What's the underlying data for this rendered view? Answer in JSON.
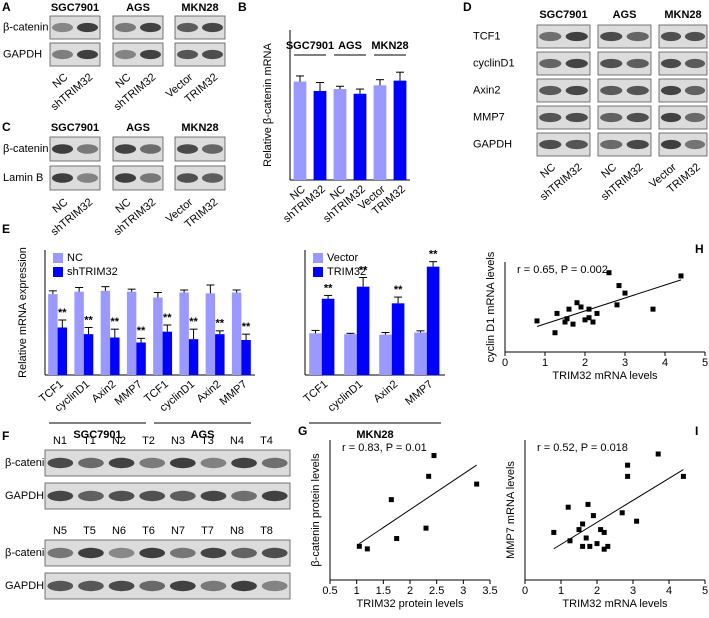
{
  "blots": {
    "A": {
      "label": "A",
      "groups": [
        "SGC7901",
        "AGS",
        "MKN28"
      ],
      "rows": [
        "β-catenin",
        "GAPDH"
      ],
      "lanes": [
        "NC",
        "shTRIM32",
        "NC",
        "shTRIM32",
        "Vector",
        "TRIM32"
      ]
    },
    "C": {
      "label": "C",
      "groups": [
        "SGC7901",
        "AGS",
        "MKN28"
      ],
      "rows": [
        "β-catenin",
        "Lamin B"
      ],
      "lanes": [
        "NC",
        "shTRIM32",
        "NC",
        "shTRIM32",
        "Vector",
        "TRIM32"
      ]
    },
    "D": {
      "label": "D",
      "groups": [
        "SGC7901",
        "AGS",
        "MKN28"
      ],
      "rows": [
        "TCF1",
        "cyclinD1",
        "Axin2",
        "MMP7",
        "GAPDH"
      ],
      "lanes": [
        "NC",
        "shTRIM32",
        "NC",
        "shTRIM32",
        "Vector",
        "TRIM32"
      ]
    },
    "F": {
      "label": "F",
      "rows": [
        "β-catenin",
        "GAPDH"
      ],
      "lanes_top": [
        "N1",
        "T1",
        "N2",
        "T2",
        "N3",
        "T3",
        "N4",
        "T4"
      ],
      "lanes_bottom": [
        "N5",
        "T5",
        "N6",
        "T6",
        "N7",
        "T7",
        "N8",
        "T8"
      ]
    }
  },
  "chart_data": [
    {
      "type": "bar",
      "label": "B",
      "ylabel": "Relative β-catenin mRNA",
      "groups": [
        "SGC7901",
        "AGS",
        "MKN28"
      ],
      "categories": [
        "NC",
        "shTRIM32",
        "NC",
        "shTRIM32",
        "Vector",
        "TRIM32"
      ],
      "values": [
        1.05,
        0.95,
        0.97,
        0.92,
        1.01,
        1.06
      ],
      "errors": [
        0.06,
        0.09,
        0.03,
        0.05,
        0.06,
        0.09
      ],
      "colors": [
        "#9999ff",
        "#0000ff",
        "#9999ff",
        "#0000ff",
        "#9999ff",
        "#0000ff"
      ],
      "ylim": [
        0,
        1.6
      ]
    },
    {
      "type": "bar",
      "label": "E",
      "ylabel": "Relative mRNA expression",
      "groups": [
        "SGC7901",
        "AGS"
      ],
      "categories": [
        "TCF1",
        "cyclinD1",
        "Axin2",
        "MMP7",
        "TCF1",
        "cyclinD1",
        "Axin2",
        "MMP7"
      ],
      "series": [
        {
          "name": "NC",
          "color": "#9999ff",
          "values": [
            0.97,
            1.0,
            1.01,
            1.0,
            0.93,
            0.99,
            0.98,
            0.99
          ],
          "errors": [
            0.04,
            0.05,
            0.05,
            0.03,
            0.06,
            0.03,
            0.1,
            0.03
          ]
        },
        {
          "name": "shTRIM32",
          "color": "#0000ff",
          "values": [
            0.57,
            0.49,
            0.45,
            0.39,
            0.52,
            0.43,
            0.49,
            0.42
          ],
          "errors": [
            0.09,
            0.08,
            0.1,
            0.05,
            0.08,
            0.12,
            0.04,
            0.07
          ],
          "annotations": [
            "**",
            "**",
            "**",
            "**",
            "**",
            "**",
            "**",
            "**"
          ]
        }
      ],
      "ylim": [
        0,
        1.5
      ]
    },
    {
      "type": "bar",
      "groups": [
        "MKN28"
      ],
      "categories": [
        "TCF1",
        "cyclinD1",
        "Axin2",
        "MMP7"
      ],
      "series": [
        {
          "name": "Vector",
          "color": "#9999ff",
          "values": [
            1.0,
            0.98,
            0.97,
            1.02
          ],
          "errors": [
            0.07,
            0.02,
            0.05,
            0.04
          ]
        },
        {
          "name": "TRIM32",
          "color": "#0000ff",
          "values": [
            1.83,
            2.12,
            1.72,
            2.6
          ],
          "errors": [
            0.08,
            0.22,
            0.15,
            0.12
          ],
          "annotations": [
            "**",
            "**",
            "**",
            "**"
          ]
        }
      ],
      "ylim": [
        0,
        3
      ]
    },
    {
      "type": "scatter",
      "label": "H",
      "annotation": "r = 0.65, P = 0.002",
      "xlabel": "TRIM32 mRNA levels",
      "ylabel": "cyclin D1 mRNA levels",
      "x": [
        0.8,
        1.25,
        1.3,
        1.5,
        1.55,
        1.6,
        1.7,
        1.8,
        1.9,
        2.0,
        2.1,
        2.1,
        2.2,
        2.3,
        2.6,
        2.8,
        2.85,
        3.0,
        3.7,
        4.4
      ],
      "values": [
        1.45,
        0.9,
        1.8,
        1.4,
        1.55,
        2.0,
        1.3,
        2.3,
        2.1,
        1.5,
        1.6,
        2.0,
        1.4,
        1.8,
        3.7,
        2.2,
        3.1,
        2.75,
        2.0,
        3.55
      ],
      "xlim": [
        0,
        5
      ],
      "xticks": [
        0,
        1,
        2,
        3,
        4,
        5
      ],
      "ylim": [
        0,
        4.2
      ]
    },
    {
      "type": "scatter",
      "label": "G",
      "annotation": "r = 0.83, P = 0.01",
      "xlabel": "TRIM32 protein levels",
      "ylabel": "β-catenin protein levels",
      "x": [
        1.05,
        1.2,
        1.65,
        1.75,
        2.3,
        2.35,
        2.45,
        3.25
      ],
      "values": [
        1.45,
        1.4,
        2.35,
        1.6,
        1.8,
        2.8,
        3.2,
        2.65
      ],
      "xlim": [
        0.5,
        3.5
      ],
      "xticks": [
        0.5,
        1.0,
        1.5,
        2.0,
        2.5,
        3.0,
        3.5
      ],
      "ylim": [
        0.8,
        3.5
      ]
    },
    {
      "type": "scatter",
      "label": "I",
      "annotation": "r = 0.52, P = 0.018",
      "xlabel": "TRIM32 mRNA levels",
      "ylabel": "MMP7 mRNA levels",
      "x": [
        0.8,
        1.2,
        1.25,
        1.5,
        1.6,
        1.6,
        1.7,
        1.75,
        1.8,
        1.9,
        2.0,
        2.1,
        2.2,
        2.2,
        2.3,
        2.7,
        2.85,
        2.85,
        3.1,
        3.7,
        4.4
      ],
      "values": [
        1.7,
        2.6,
        1.4,
        1.8,
        1.2,
        2.0,
        1.5,
        2.7,
        1.2,
        2.3,
        1.3,
        1.8,
        1.7,
        1.1,
        1.2,
        2.4,
        4.1,
        3.7,
        2.1,
        4.5,
        3.7
      ],
      "xlim": [
        0,
        5
      ],
      "xticks": [
        0,
        1,
        2,
        3,
        4,
        5
      ],
      "ylim": [
        0,
        5
      ]
    }
  ]
}
